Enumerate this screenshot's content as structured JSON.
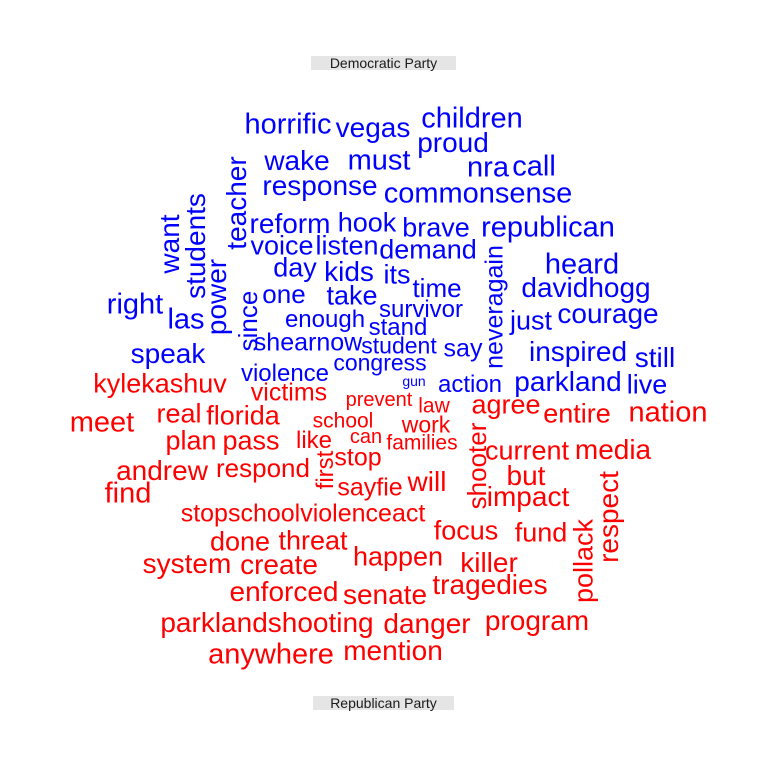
{
  "chart_data": {
    "type": "wordcloud",
    "groups": [
      {
        "name": "Democratic Party",
        "color": "#0000ff",
        "words": [
          "horrific",
          "vegas",
          "children",
          "proud",
          "wake",
          "must",
          "nra",
          "call",
          "response",
          "commonsense",
          "teacher",
          "students",
          "want",
          "reform",
          "hook",
          "brave",
          "republican",
          "voice",
          "listen",
          "demand",
          "neveragain",
          "heard",
          "day",
          "kids",
          "its",
          "time",
          "davidhogg",
          "power",
          "one",
          "take",
          "right",
          "las",
          "since",
          "survivor",
          "just",
          "courage",
          "enough",
          "stand",
          "shearnow",
          "student",
          "say",
          "inspired",
          "still",
          "speak",
          "congress",
          "violence",
          "gun",
          "action",
          "parkland",
          "live"
        ]
      },
      {
        "name": "Republican Party",
        "color": "#ff0000",
        "words": [
          "kylekashuv",
          "victims",
          "prevent",
          "law",
          "agree",
          "entire",
          "nation",
          "meet",
          "real",
          "florida",
          "school",
          "work",
          "plan",
          "pass",
          "like",
          "can",
          "families",
          "shooter",
          "current",
          "media",
          "stop",
          "first",
          "andrew",
          "respond",
          "but",
          "will",
          "sayfie",
          "find",
          "impact",
          "respect",
          "stopschoolviolenceact",
          "focus",
          "fund",
          "pollack",
          "done",
          "threat",
          "happen",
          "system",
          "create",
          "killer",
          "enforced",
          "senate",
          "tragedies",
          "parklandshooting",
          "danger",
          "program",
          "anywhere",
          "mention"
        ]
      }
    ]
  }
}
